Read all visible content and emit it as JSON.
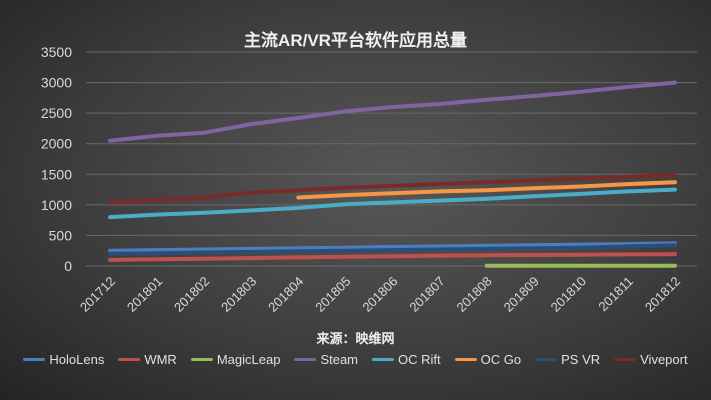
{
  "chart_data": {
    "type": "line",
    "title": "主流AR/VR平台软件应用总量",
    "xlabel": "来源：映维网",
    "ylabel": "",
    "categories": [
      "201712",
      "201801",
      "201802",
      "201803",
      "201804",
      "201805",
      "201806",
      "201807",
      "201808",
      "201809",
      "201810",
      "201811",
      "201812"
    ],
    "ylim": [
      0,
      3500
    ],
    "yticks": [
      0,
      500,
      1000,
      1500,
      2000,
      2500,
      3000,
      3500
    ],
    "grid": true,
    "legend": "bottom",
    "series": [
      {
        "name": "HoloLens",
        "color": "#4a7ebf",
        "values": [
          250,
          260,
          270,
          280,
          290,
          300,
          310,
          320,
          330,
          340,
          350,
          360,
          370
        ]
      },
      {
        "name": "WMR",
        "color": "#c0504d",
        "values": [
          100,
          110,
          120,
          130,
          140,
          150,
          160,
          170,
          175,
          180,
          185,
          190,
          195
        ]
      },
      {
        "name": "MagicLeap",
        "color": "#9bbb59",
        "values": [
          null,
          null,
          null,
          null,
          null,
          null,
          null,
          null,
          5,
          5,
          5,
          5,
          5
        ]
      },
      {
        "name": "Steam",
        "color": "#8064a2",
        "values": [
          2050,
          2130,
          2180,
          2320,
          2420,
          2530,
          2600,
          2650,
          2720,
          2780,
          2850,
          2930,
          3000
        ]
      },
      {
        "name": "OC Rift",
        "color": "#4bacc6",
        "values": [
          800,
          840,
          870,
          910,
          950,
          1010,
          1040,
          1070,
          1100,
          1140,
          1180,
          1220,
          1250
        ]
      },
      {
        "name": "OC Go",
        "color": "#f79646",
        "values": [
          null,
          null,
          null,
          null,
          1120,
          1160,
          1190,
          1220,
          1240,
          1270,
          1300,
          1340,
          1370
        ]
      },
      {
        "name": "PS VR",
        "color": "#2c4d75",
        "values": [
          200,
          210,
          220,
          230,
          240,
          250,
          260,
          270,
          280,
          290,
          300,
          320,
          340
        ]
      },
      {
        "name": "Viveport",
        "color": "#772c2a",
        "values": [
          1040,
          1080,
          1120,
          1200,
          1240,
          1280,
          1310,
          1340,
          1370,
          1400,
          1430,
          1460,
          1490
        ]
      }
    ]
  }
}
